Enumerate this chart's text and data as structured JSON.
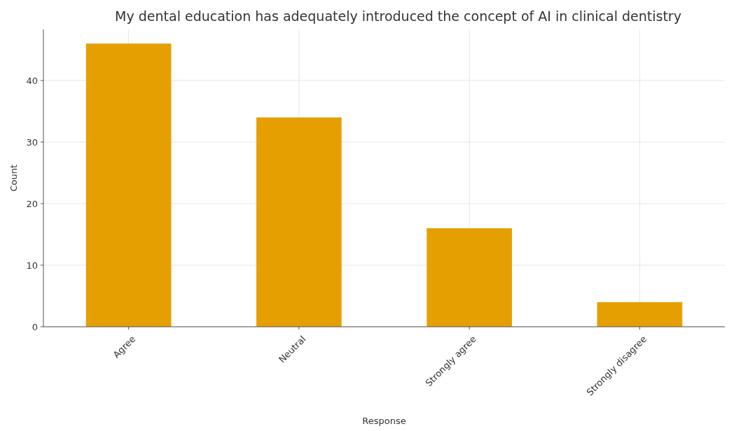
{
  "chart_data": {
    "type": "bar",
    "title": "My dental education has adequately introduced the concept of AI in clinical dentistry",
    "xlabel": "Response",
    "ylabel": "Count",
    "categories": [
      "Agree",
      "Neutral",
      "Strongly agree",
      "Strongly disagree"
    ],
    "values": [
      46,
      34,
      16,
      4
    ],
    "color": "#e69f00",
    "ylim": [
      0,
      48.3
    ],
    "yticks": [
      0,
      10,
      20,
      30,
      40
    ],
    "grid": true
  }
}
